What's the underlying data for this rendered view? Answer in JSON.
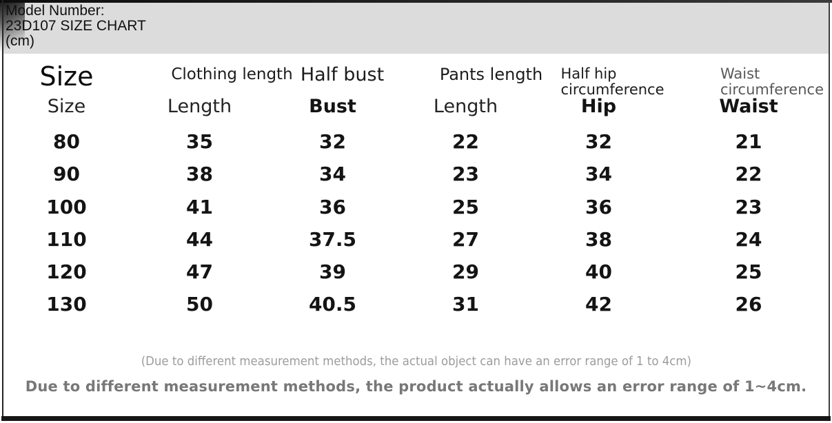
{
  "chart_data": {
    "type": "table",
    "title": "Model Number: 23D107 SIZE CHART (cm)",
    "title_lines": [
      "Model Number:",
      "23D107 SIZE CHART",
      "(cm)"
    ],
    "unit": "cm",
    "group_headers": [
      "Size",
      "Clothing length",
      "Half bust",
      "Pants length",
      "Half hip\ncircumference",
      "Waist\ncircumference"
    ],
    "column_headers": [
      "Size",
      "Length",
      "Bust",
      "Length",
      "Hip",
      "Waist"
    ],
    "rows": [
      [
        "80",
        "35",
        "32",
        "22",
        "32",
        "21"
      ],
      [
        "90",
        "38",
        "34",
        "23",
        "34",
        "22"
      ],
      [
        "100",
        "41",
        "36",
        "25",
        "36",
        "23"
      ],
      [
        "110",
        "44",
        "37.5",
        "27",
        "38",
        "24"
      ],
      [
        "120",
        "47",
        "39",
        "29",
        "40",
        "25"
      ],
      [
        "130",
        "50",
        "40.5",
        "31",
        "42",
        "26"
      ]
    ],
    "notes": [
      "(Due to different measurement methods, the actual object can have an error range of 1 to 4cm)",
      "Due to different measurement methods, the product actually allows an error range of 1~4cm."
    ]
  },
  "colors": {
    "title_band_gray": "#dcdcdc",
    "frame_dark": "#1c1c1c",
    "text_primary": "#141414",
    "muted_group_header": "#585858",
    "note_light_gray": "#9c9c9c",
    "note_bold_gray": "#787878"
  }
}
